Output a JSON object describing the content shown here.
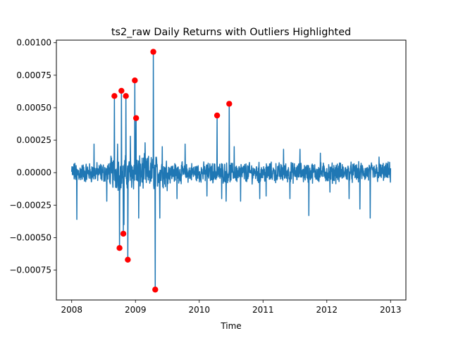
{
  "chart_data": {
    "type": "line",
    "title": "ts2_raw Daily Returns with Outliers Highlighted",
    "xlabel": "Time",
    "ylabel": "",
    "xlim": [
      2007.76,
      2013.24
    ],
    "ylim": [
      -0.00098,
      0.00102
    ],
    "grid": false,
    "x_ticks": [
      {
        "value": 2008,
        "label": "2008"
      },
      {
        "value": 2009,
        "label": "2009"
      },
      {
        "value": 2010,
        "label": "2010"
      },
      {
        "value": 2011,
        "label": "2011"
      },
      {
        "value": 2012,
        "label": "2012"
      },
      {
        "value": 2013,
        "label": "2013"
      }
    ],
    "y_ticks": [
      {
        "value": -0.00075,
        "label": "−0.00075"
      },
      {
        "value": -0.0005,
        "label": "−0.00050"
      },
      {
        "value": -0.00025,
        "label": "−0.00025"
      },
      {
        "value": 0.0,
        "label": "0.00000"
      },
      {
        "value": 0.00025,
        "label": "0.00025"
      },
      {
        "value": 0.0005,
        "label": "0.00050"
      },
      {
        "value": 0.00075,
        "label": "0.00075"
      },
      {
        "value": 0.001,
        "label": "0.00100"
      }
    ],
    "series": [
      {
        "kind": "line",
        "color": "#1f77b4",
        "x_start": 2008.0,
        "x_end": 2013.0,
        "n_points": 1300,
        "noise_amplitude": 6e-05,
        "spikes": [
          {
            "x": 2008.08,
            "y": -0.00036
          },
          {
            "x": 2008.35,
            "y": 0.00022
          },
          {
            "x": 2008.55,
            "y": -0.00022
          },
          {
            "x": 2008.72,
            "y": 0.00022
          },
          {
            "x": 2008.82,
            "y": -0.0004
          },
          {
            "x": 2008.92,
            "y": 0.00028
          },
          {
            "x": 2009.05,
            "y": -0.00035
          },
          {
            "x": 2009.15,
            "y": 0.00023
          },
          {
            "x": 2009.38,
            "y": -0.00035
          },
          {
            "x": 2009.42,
            "y": 0.0002
          },
          {
            "x": 2009.65,
            "y": -0.0002
          },
          {
            "x": 2009.78,
            "y": 0.00022
          },
          {
            "x": 2010.12,
            "y": -0.00018
          },
          {
            "x": 2010.35,
            "y": -0.0002
          },
          {
            "x": 2010.42,
            "y": -0.00022
          },
          {
            "x": 2010.55,
            "y": 0.0002
          },
          {
            "x": 2010.65,
            "y": -0.00022
          },
          {
            "x": 2010.95,
            "y": -0.0002
          },
          {
            "x": 2011.05,
            "y": -0.00018
          },
          {
            "x": 2011.32,
            "y": 0.00018
          },
          {
            "x": 2011.42,
            "y": -0.0002
          },
          {
            "x": 2011.58,
            "y": 0.00018
          },
          {
            "x": 2011.72,
            "y": -0.00033
          },
          {
            "x": 2011.9,
            "y": 0.00015
          },
          {
            "x": 2012.05,
            "y": -0.00015
          },
          {
            "x": 2012.35,
            "y": -0.0002
          },
          {
            "x": 2012.52,
            "y": -0.00028
          },
          {
            "x": 2012.68,
            "y": -0.00035
          },
          {
            "x": 2012.82,
            "y": 0.00012
          }
        ]
      }
    ],
    "outliers": {
      "color": "#ff0000",
      "points": [
        {
          "x": 2008.67,
          "y": 0.00059
        },
        {
          "x": 2008.75,
          "y": -0.00058
        },
        {
          "x": 2008.78,
          "y": 0.00063
        },
        {
          "x": 2008.81,
          "y": -0.00047
        },
        {
          "x": 2008.85,
          "y": 0.00059
        },
        {
          "x": 2008.88,
          "y": -0.00067
        },
        {
          "x": 2008.99,
          "y": 0.00071
        },
        {
          "x": 2009.01,
          "y": 0.00042
        },
        {
          "x": 2009.28,
          "y": 0.00093
        },
        {
          "x": 2009.31,
          "y": -0.0009
        },
        {
          "x": 2010.28,
          "y": 0.00044
        },
        {
          "x": 2010.47,
          "y": 0.00053
        }
      ]
    }
  }
}
